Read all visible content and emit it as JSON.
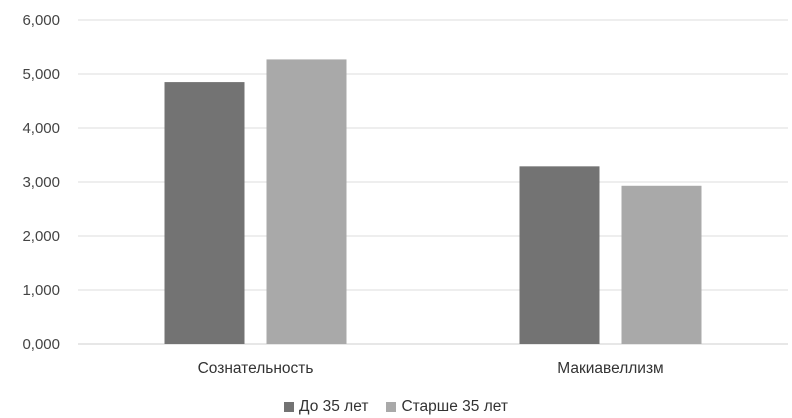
{
  "chart_data": {
    "type": "bar",
    "title": "",
    "xlabel": "",
    "ylabel": "",
    "categories": [
      "Сознательность",
      "Макиавеллизм"
    ],
    "series": [
      {
        "name": "До 35 лет",
        "values": [
          4.85,
          3.29
        ],
        "color": "#737373"
      },
      {
        "name": "Старше 35 лет",
        "values": [
          5.27,
          2.93
        ],
        "color": "#a9a9a9"
      }
    ],
    "ylim": [
      0,
      6
    ],
    "yticks": [
      "0,000",
      "1,000",
      "2,000",
      "3,000",
      "4,000",
      "5,000",
      "6,000"
    ],
    "grid": true,
    "legend_position": "bottom"
  }
}
